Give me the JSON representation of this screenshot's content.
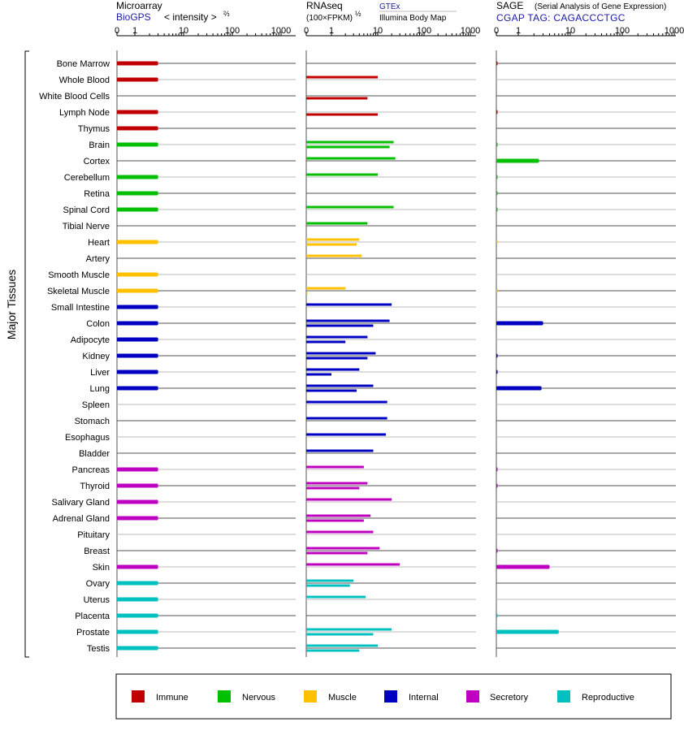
{
  "panels": {
    "microarray": {
      "title": "Microarray",
      "source": "BioGPS",
      "axis_label": "< intensity >",
      "exponent": "⅔",
      "ticks": [
        "0",
        "1",
        "10",
        "100",
        "1000"
      ]
    },
    "rnaseq": {
      "title": "RNAseq",
      "subtitle": "(100×FPKM)",
      "exponent": "½",
      "legend_top": "GTEx",
      "legend_bottom": "Illumina Body Map",
      "ticks": [
        "0",
        "1",
        "10",
        "100",
        "1000"
      ]
    },
    "sage": {
      "title": "SAGE",
      "subtitle": "(Serial Analysis of Gene Expression)",
      "tag_label": "CGAP TAG: CAGACCCTGC",
      "ticks": [
        "0",
        "1",
        "10",
        "100",
        "1000"
      ]
    }
  },
  "y_axis_label": "Major Tissues",
  "legend": [
    {
      "label": "Immune",
      "color": "#c00000"
    },
    {
      "label": "Nervous",
      "color": "#00c000"
    },
    {
      "label": "Muscle",
      "color": "#ffc000"
    },
    {
      "label": "Internal",
      "color": "#0000c0"
    },
    {
      "label": "Secretory",
      "color": "#c000c0"
    },
    {
      "label": "Reproductive",
      "color": "#00c0c0"
    }
  ],
  "chart_data": {
    "type": "bar",
    "x_scale": "log-like (0, 1, 10, 100, 1000)",
    "xlim": [
      0,
      1000
    ],
    "series_names": [
      "Microarray (BioGPS)",
      "RNAseq GTEx",
      "RNAseq Illumina Body Map",
      "SAGE"
    ],
    "tissues": [
      {
        "name": "Bone Marrow",
        "group": "Immune",
        "microarray": 3,
        "gtex": null,
        "ibm": null,
        "sage": 0.02
      },
      {
        "name": "Whole Blood",
        "group": "Immune",
        "microarray": 3,
        "gtex": 10,
        "ibm": null,
        "sage": null
      },
      {
        "name": "White Blood Cells",
        "group": "Immune",
        "microarray": null,
        "gtex": null,
        "ibm": 6,
        "sage": null
      },
      {
        "name": "Lymph Node",
        "group": "Immune",
        "microarray": 3,
        "gtex": null,
        "ibm": 10,
        "sage": 0.02
      },
      {
        "name": "Thymus",
        "group": "Immune",
        "microarray": 3,
        "gtex": null,
        "ibm": null,
        "sage": null
      },
      {
        "name": "Brain",
        "group": "Nervous",
        "microarray": 3,
        "gtex": 22,
        "ibm": 18,
        "sage": 0.02
      },
      {
        "name": "Cortex",
        "group": "Nervous",
        "microarray": null,
        "gtex": 24,
        "ibm": null,
        "sage": 2.5
      },
      {
        "name": "Cerebellum",
        "group": "Nervous",
        "microarray": 3,
        "gtex": 10,
        "ibm": null,
        "sage": 0.02
      },
      {
        "name": "Retina",
        "group": "Nervous",
        "microarray": 3,
        "gtex": null,
        "ibm": null,
        "sage": 0.02
      },
      {
        "name": "Spinal Cord",
        "group": "Nervous",
        "microarray": 3,
        "gtex": 22,
        "ibm": null,
        "sage": 0.02
      },
      {
        "name": "Tibial Nerve",
        "group": "Nervous",
        "microarray": null,
        "gtex": 6,
        "ibm": null,
        "sage": null
      },
      {
        "name": "Heart",
        "group": "Muscle",
        "microarray": 3,
        "gtex": 4,
        "ibm": 3.5,
        "sage": 0.02
      },
      {
        "name": "Artery",
        "group": "Muscle",
        "microarray": null,
        "gtex": 4.5,
        "ibm": null,
        "sage": null
      },
      {
        "name": "Smooth Muscle",
        "group": "Muscle",
        "microarray": 3,
        "gtex": null,
        "ibm": null,
        "sage": null
      },
      {
        "name": "Skeletal Muscle",
        "group": "Muscle",
        "microarray": 3,
        "gtex": 2,
        "ibm": 0.02,
        "sage": 0.02
      },
      {
        "name": "Small Intestine",
        "group": "Internal",
        "microarray": 3,
        "gtex": 20,
        "ibm": null,
        "sage": null
      },
      {
        "name": "Colon",
        "group": "Internal",
        "microarray": 3,
        "gtex": 18,
        "ibm": 8,
        "sage": 3
      },
      {
        "name": "Adipocyte",
        "group": "Internal",
        "microarray": 3,
        "gtex": 6,
        "ibm": 2,
        "sage": null
      },
      {
        "name": "Kidney",
        "group": "Internal",
        "microarray": 3,
        "gtex": 9,
        "ibm": 6,
        "sage": 0.02
      },
      {
        "name": "Liver",
        "group": "Internal",
        "microarray": 3,
        "gtex": 4,
        "ibm": 1,
        "sage": 0.02
      },
      {
        "name": "Lung",
        "group": "Internal",
        "microarray": 3,
        "gtex": 8,
        "ibm": 3.5,
        "sage": 2.8
      },
      {
        "name": "Spleen",
        "group": "Internal",
        "microarray": null,
        "gtex": 16,
        "ibm": null,
        "sage": null
      },
      {
        "name": "Stomach",
        "group": "Internal",
        "microarray": null,
        "gtex": 16,
        "ibm": null,
        "sage": null
      },
      {
        "name": "Esophagus",
        "group": "Internal",
        "microarray": null,
        "gtex": 15,
        "ibm": null,
        "sage": null
      },
      {
        "name": "Bladder",
        "group": "Internal",
        "microarray": null,
        "gtex": 8,
        "ibm": null,
        "sage": null
      },
      {
        "name": "Pancreas",
        "group": "Secretory",
        "microarray": 3,
        "gtex": 5,
        "ibm": null,
        "sage": 0.02
      },
      {
        "name": "Thyroid",
        "group": "Secretory",
        "microarray": 3,
        "gtex": 6,
        "ibm": 4,
        "sage": 0.02
      },
      {
        "name": "Salivary Gland",
        "group": "Secretory",
        "microarray": 3,
        "gtex": 20,
        "ibm": null,
        "sage": null
      },
      {
        "name": "Adrenal Gland",
        "group": "Secretory",
        "microarray": 3,
        "gtex": 7,
        "ibm": 5,
        "sage": null
      },
      {
        "name": "Pituitary",
        "group": "Secretory",
        "microarray": null,
        "gtex": 8,
        "ibm": null,
        "sage": null
      },
      {
        "name": "Breast",
        "group": "Secretory",
        "microarray": null,
        "gtex": 11,
        "ibm": 6,
        "sage": 0.02
      },
      {
        "name": "Skin",
        "group": "Secretory",
        "microarray": 3,
        "gtex": 30,
        "ibm": null,
        "sage": 4
      },
      {
        "name": "Ovary",
        "group": "Reproductive",
        "microarray": 3,
        "gtex": 3,
        "ibm": 2.5,
        "sage": null
      },
      {
        "name": "Uterus",
        "group": "Reproductive",
        "microarray": 3,
        "gtex": 5.5,
        "ibm": null,
        "sage": null
      },
      {
        "name": "Placenta",
        "group": "Reproductive",
        "microarray": 3,
        "gtex": null,
        "ibm": null,
        "sage": 0.02
      },
      {
        "name": "Prostate",
        "group": "Reproductive",
        "microarray": 3,
        "gtex": 20,
        "ibm": 8,
        "sage": 6
      },
      {
        "name": "Testis",
        "group": "Reproductive",
        "microarray": 3,
        "gtex": 10,
        "ibm": 4,
        "sage": null
      }
    ]
  }
}
